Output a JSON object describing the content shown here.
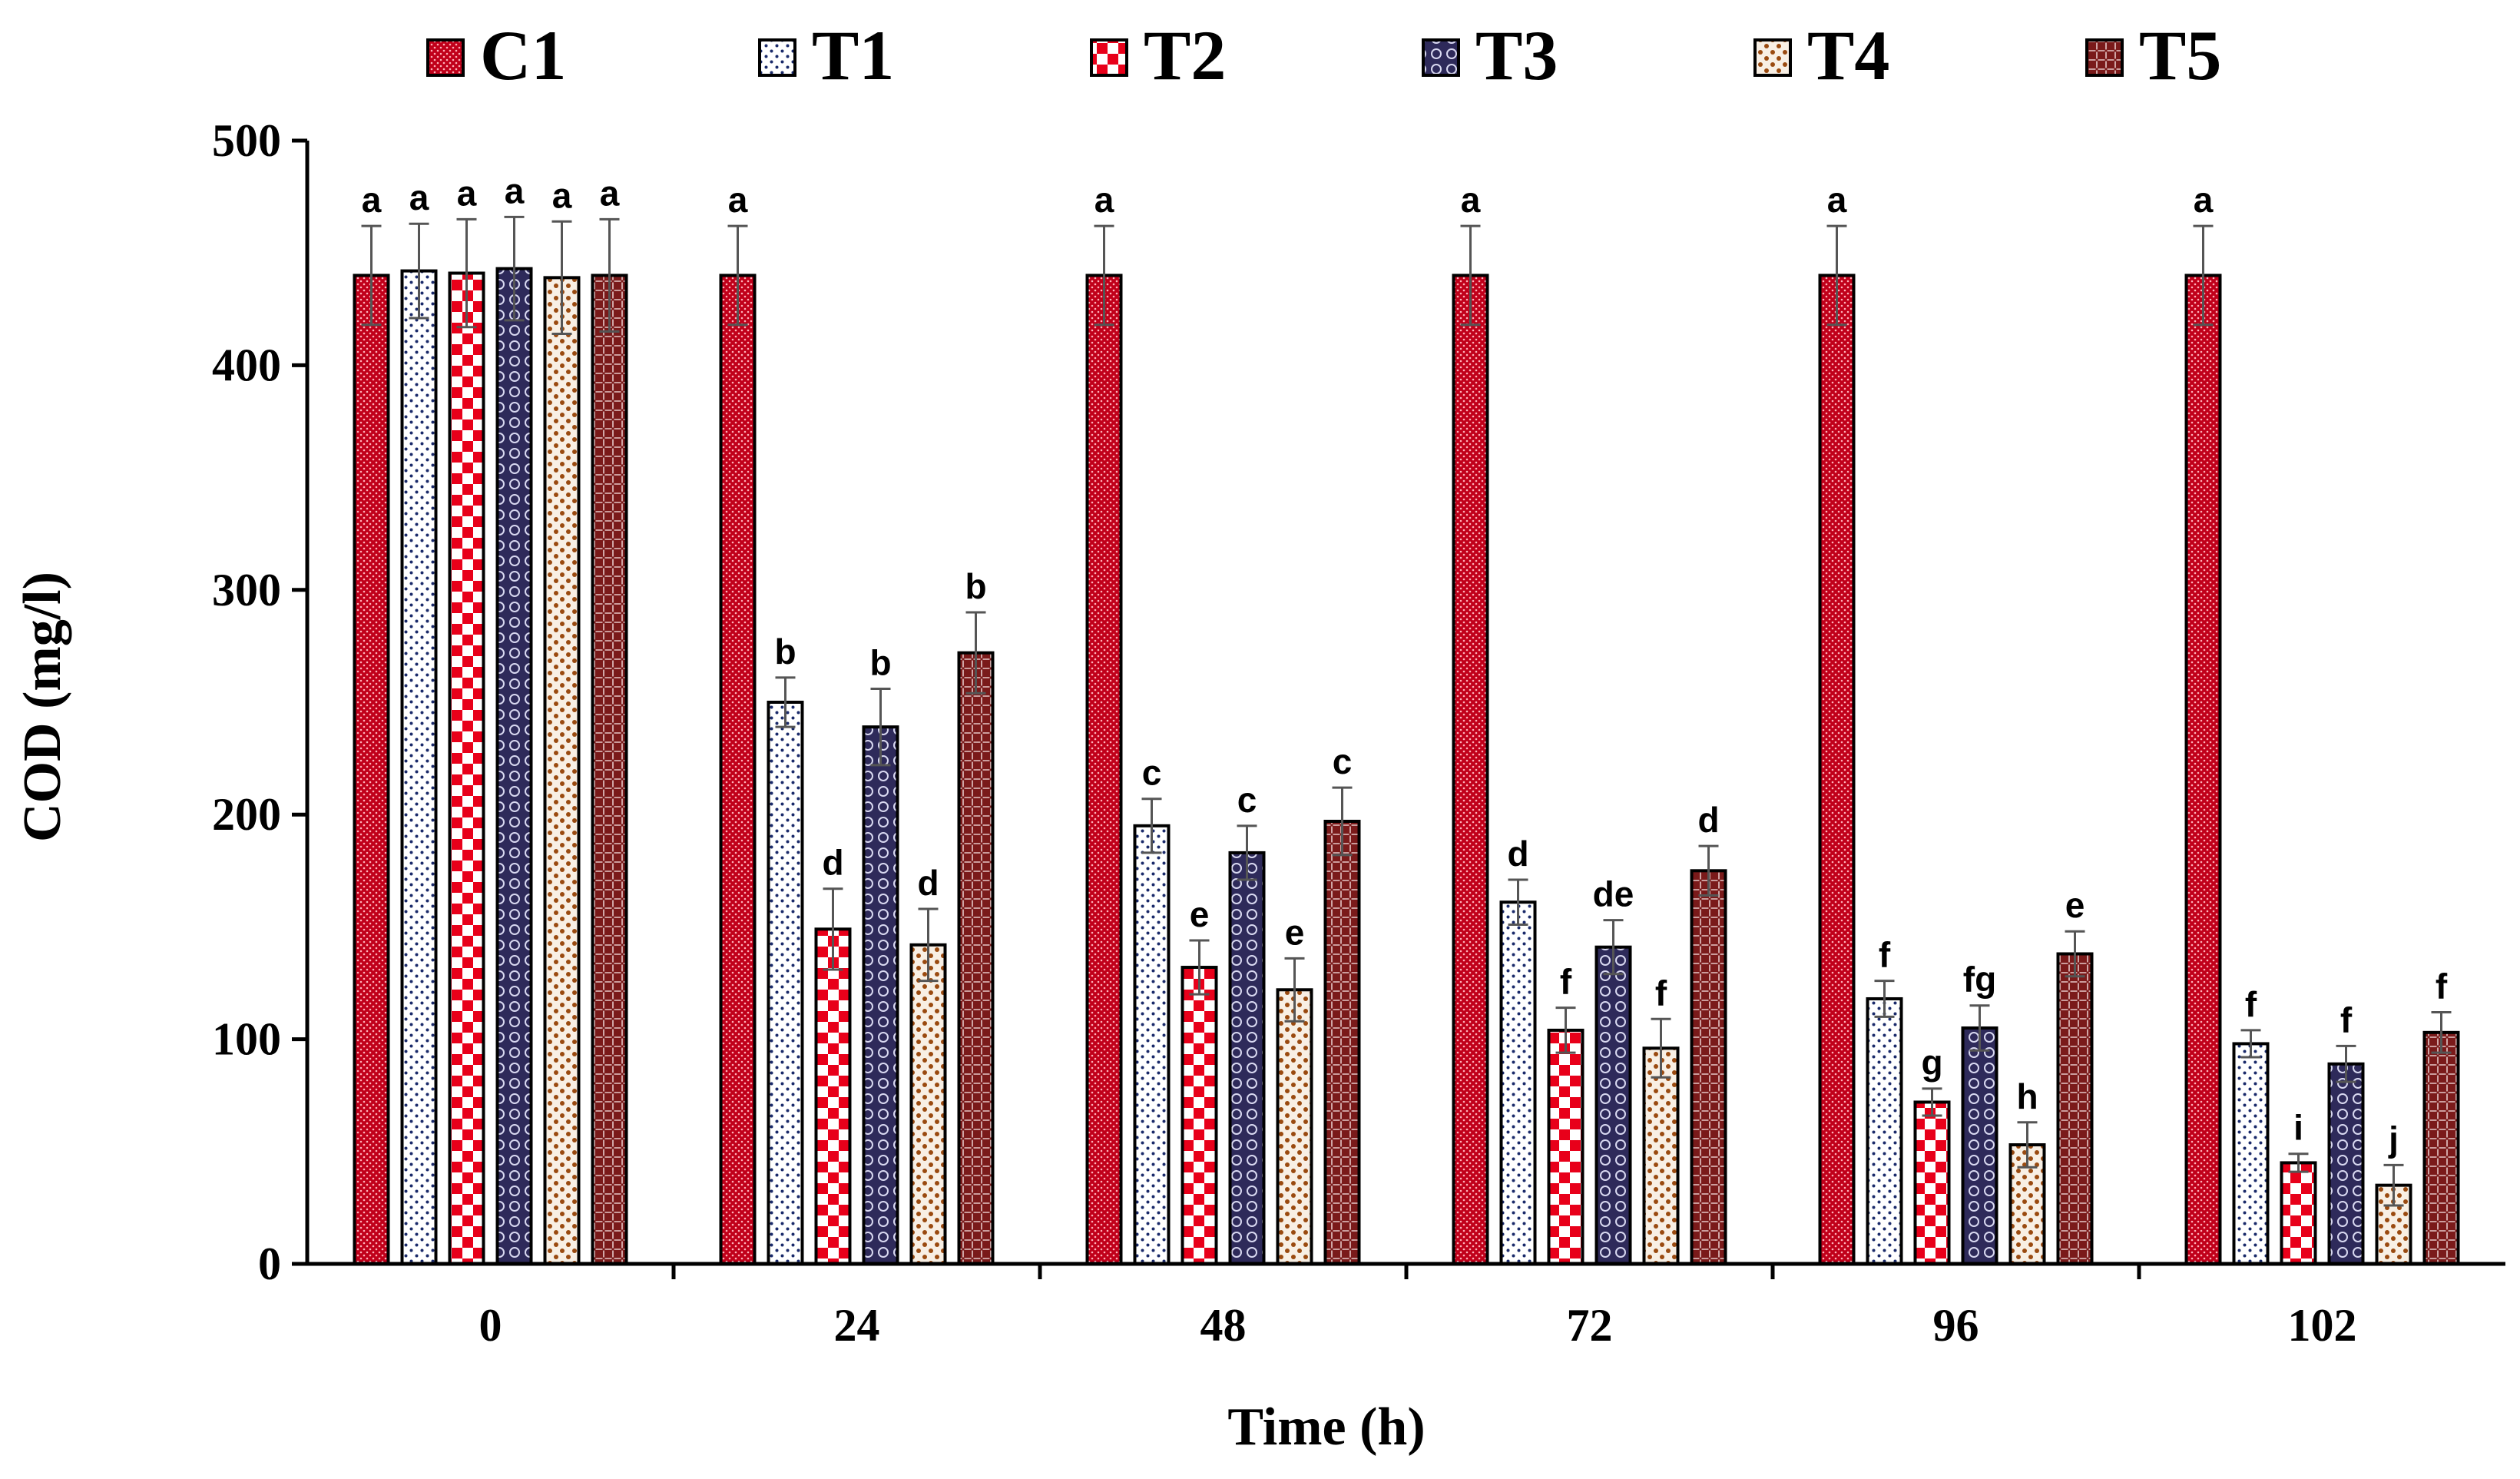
{
  "chart_data": {
    "type": "bar",
    "title": "",
    "xlabel": "Time (h)",
    "ylabel": "COD (mg/l)",
    "ylim": [
      0,
      500
    ],
    "yticks": [
      0,
      100,
      200,
      300,
      400,
      500
    ],
    "grid": false,
    "legend_position": "top",
    "categories": [
      "0",
      "24",
      "48",
      "72",
      "96",
      "102"
    ],
    "series": [
      {
        "name": "C1",
        "color": "#c0001a",
        "values": [
          440,
          440,
          440,
          440,
          440,
          440
        ],
        "errors": [
          22,
          22,
          22,
          22,
          22,
          22
        ],
        "labels": [
          "a",
          "a",
          "a",
          "a",
          "a",
          "a"
        ]
      },
      {
        "name": "T1",
        "color": "#ffffff",
        "values": [
          442,
          250,
          195,
          161,
          118,
          98
        ],
        "errors": [
          21,
          11,
          12,
          10,
          8,
          6
        ],
        "labels": [
          "a",
          "b",
          "c",
          "d",
          "f",
          "f"
        ]
      },
      {
        "name": "T2",
        "color": "#e8001a",
        "values": [
          441,
          149,
          132,
          104,
          72,
          45
        ],
        "errors": [
          24,
          18,
          12,
          10,
          6,
          4
        ],
        "labels": [
          "a",
          "d",
          "e",
          "f",
          "g",
          "i"
        ]
      },
      {
        "name": "T3",
        "color": "#2e2a5a",
        "values": [
          443,
          239,
          183,
          141,
          105,
          89
        ],
        "errors": [
          23,
          17,
          12,
          12,
          10,
          8
        ],
        "labels": [
          "a",
          "b",
          "c",
          "de",
          "fg",
          "f"
        ]
      },
      {
        "name": "T4",
        "color": "#9a4a10",
        "values": [
          439,
          142,
          122,
          96,
          53,
          35
        ],
        "errors": [
          25,
          16,
          14,
          13,
          10,
          9
        ],
        "labels": [
          "a",
          "d",
          "e",
          "f",
          "h",
          "j"
        ]
      },
      {
        "name": "T5",
        "color": "#7a1a1a",
        "values": [
          440,
          272,
          197,
          175,
          138,
          103
        ],
        "errors": [
          25,
          18,
          15,
          11,
          10,
          9
        ],
        "labels": [
          "a",
          "b",
          "c",
          "d",
          "e",
          "f"
        ]
      }
    ]
  }
}
